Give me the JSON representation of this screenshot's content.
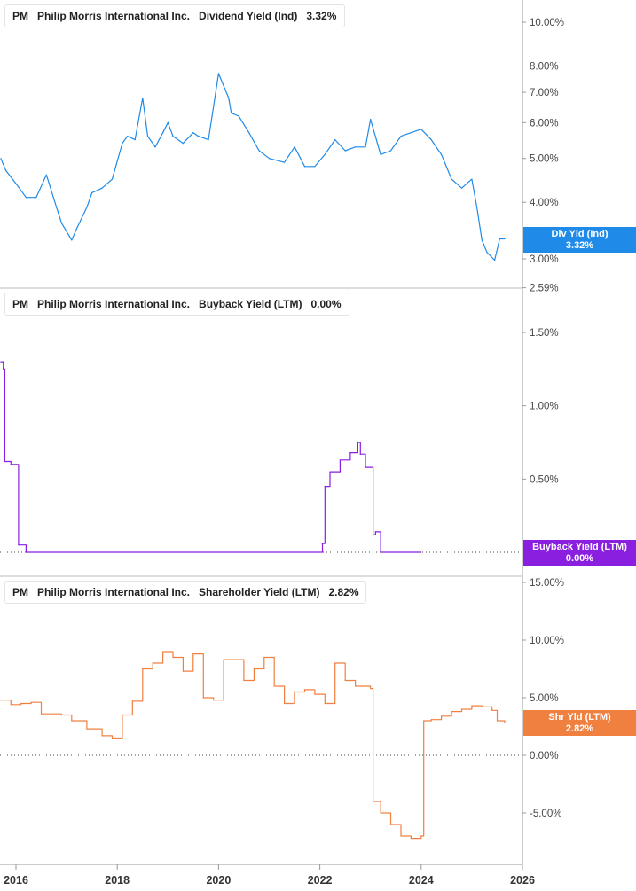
{
  "colors": {
    "dividend": "#1f8ae8",
    "buyback": "#8a1fe0",
    "shareholder": "#f08040"
  },
  "panels": [
    {
      "ticker": "PM",
      "company": "Philip Morris International Inc.",
      "metric": "Dividend Yield (Ind)",
      "value": "3.32%",
      "flag_label": "Div Yld (Ind)",
      "flag_value": "3.32%"
    },
    {
      "ticker": "PM",
      "company": "Philip Morris International Inc.",
      "metric": "Buyback Yield (LTM)",
      "value": "0.00%",
      "flag_label": "Buyback Yield (LTM)",
      "flag_value": "0.00%"
    },
    {
      "ticker": "PM",
      "company": "Philip Morris International Inc.",
      "metric": "Shareholder Yield (LTM)",
      "value": "2.82%",
      "flag_label": "Shr Yld (LTM)",
      "flag_value": "2.82%"
    }
  ],
  "chart_data": [
    {
      "type": "line",
      "title": "PM Philip Morris International Inc. Dividend Yield (Ind) 3.32%",
      "scale": "log",
      "y_ticks": [
        "10.00%",
        "8.00%",
        "7.00%",
        "6.00%",
        "5.00%",
        "4.00%",
        "3.00%",
        "2.59%"
      ],
      "y_tick_values": [
        10,
        8,
        7,
        6,
        5,
        4,
        3,
        2.59
      ],
      "series": [
        {
          "name": "Dividend Yield (Ind)",
          "x": [
            2015.7,
            2015.8,
            2016.0,
            2016.2,
            2016.4,
            2016.6,
            2016.8,
            2016.9,
            2017.1,
            2017.2,
            2017.4,
            2017.5,
            2017.7,
            2017.9,
            2018.1,
            2018.2,
            2018.35,
            2018.5,
            2018.6,
            2018.75,
            2018.9,
            2019.0,
            2019.1,
            2019.3,
            2019.5,
            2019.6,
            2019.8,
            2020.0,
            2020.2,
            2020.25,
            2020.4,
            2020.6,
            2020.8,
            2021.0,
            2021.3,
            2021.5,
            2021.7,
            2021.9,
            2022.1,
            2022.3,
            2022.5,
            2022.7,
            2022.9,
            2023.0,
            2023.2,
            2023.4,
            2023.6,
            2023.8,
            2024.0,
            2024.2,
            2024.4,
            2024.6,
            2024.8,
            2025.0,
            2025.1,
            2025.2,
            2025.3,
            2025.45,
            2025.55,
            2025.65
          ],
          "values": [
            5.0,
            4.7,
            4.4,
            4.1,
            4.1,
            4.6,
            3.9,
            3.6,
            3.3,
            3.5,
            3.9,
            4.2,
            4.3,
            4.5,
            5.4,
            5.6,
            5.5,
            6.8,
            5.6,
            5.3,
            5.7,
            6.0,
            5.6,
            5.4,
            5.7,
            5.6,
            5.5,
            7.7,
            6.8,
            6.3,
            6.2,
            5.7,
            5.2,
            5.0,
            4.9,
            5.3,
            4.8,
            4.8,
            5.1,
            5.5,
            5.2,
            5.3,
            5.3,
            6.1,
            5.1,
            5.2,
            5.6,
            5.7,
            5.8,
            5.5,
            5.1,
            4.5,
            4.3,
            4.5,
            3.9,
            3.3,
            3.1,
            2.98,
            3.32,
            3.32
          ]
        }
      ]
    },
    {
      "type": "line",
      "title": "PM Philip Morris International Inc. Buyback Yield (LTM) 0.00%",
      "y_ticks": [
        "1.50%",
        "1.00%",
        "0.50%"
      ],
      "y_tick_values": [
        1.5,
        1.0,
        0.5
      ],
      "series": [
        {
          "name": "Buyback Yield (LTM)",
          "x": [
            2015.7,
            2015.75,
            2015.78,
            2015.8,
            2015.9,
            2016.0,
            2016.05,
            2016.2,
            2022.05,
            2022.1,
            2022.2,
            2022.4,
            2022.6,
            2022.75,
            2022.8,
            2022.9,
            2023.0,
            2023.05,
            2023.1,
            2023.2,
            2023.3,
            2023.5,
            2023.7,
            2024.0
          ],
          "values": [
            1.3,
            1.25,
            0.62,
            0.62,
            0.6,
            0.6,
            0.05,
            0.0,
            0.06,
            0.45,
            0.55,
            0.63,
            0.68,
            0.75,
            0.67,
            0.58,
            0.58,
            0.12,
            0.14,
            0.0,
            0.0,
            0.0,
            0.0,
            0.0
          ]
        }
      ]
    },
    {
      "type": "line",
      "title": "PM Philip Morris International Inc. Shareholder Yield (LTM) 2.82%",
      "y_ticks": [
        "15.00%",
        "10.00%",
        "5.00%",
        "0.00%",
        "-5.00%"
      ],
      "y_tick_values": [
        15,
        10,
        5,
        0,
        -5
      ],
      "series": [
        {
          "name": "Shareholder Yield (LTM)",
          "x": [
            2015.7,
            2015.9,
            2016.1,
            2016.3,
            2016.5,
            2016.9,
            2017.1,
            2017.4,
            2017.7,
            2017.9,
            2018.1,
            2018.3,
            2018.5,
            2018.7,
            2018.9,
            2019.1,
            2019.3,
            2019.5,
            2019.7,
            2019.9,
            2020.1,
            2020.3,
            2020.5,
            2020.7,
            2020.9,
            2021.1,
            2021.3,
            2021.5,
            2021.7,
            2021.9,
            2022.1,
            2022.3,
            2022.5,
            2022.7,
            2022.9,
            2023.0,
            2023.05,
            2023.2,
            2023.4,
            2023.6,
            2023.8,
            2024.0,
            2024.05,
            2024.2,
            2024.4,
            2024.6,
            2024.8,
            2025.0,
            2025.2,
            2025.4,
            2025.5,
            2025.65
          ],
          "values": [
            4.8,
            4.4,
            4.5,
            4.6,
            3.6,
            3.5,
            3.0,
            2.3,
            1.7,
            1.5,
            3.5,
            4.7,
            7.5,
            8.0,
            9.0,
            8.5,
            7.3,
            8.8,
            5.0,
            4.8,
            8.3,
            8.3,
            6.5,
            7.5,
            8.5,
            6.0,
            4.5,
            5.5,
            5.7,
            5.3,
            4.5,
            8.0,
            6.5,
            6.0,
            6.0,
            5.8,
            -4.0,
            -5.0,
            -6.0,
            -7.0,
            -7.2,
            -7.0,
            3.0,
            3.1,
            3.4,
            3.8,
            4.0,
            4.3,
            4.2,
            3.9,
            3.0,
            2.82
          ]
        }
      ]
    }
  ],
  "x_axis": {
    "ticks": [
      "2016",
      "2018",
      "2020",
      "2022",
      "2024",
      "2026"
    ],
    "tick_values": [
      2016,
      2018,
      2020,
      2022,
      2024,
      2026
    ]
  }
}
